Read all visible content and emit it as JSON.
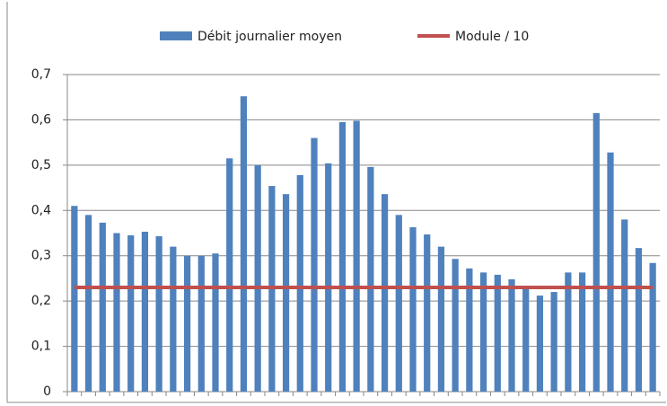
{
  "chart_data": {
    "type": "bar",
    "categories": [
      null,
      null,
      null,
      null,
      null,
      null,
      null,
      null,
      null,
      null,
      null,
      null,
      null,
      null,
      null,
      null,
      null,
      null,
      null,
      null,
      null,
      null,
      null,
      null,
      null,
      null,
      null,
      null,
      null,
      null,
      null,
      null,
      null,
      null,
      null,
      null,
      null,
      null,
      null,
      null,
      null,
      null
    ],
    "series": [
      {
        "name": "Débit journalier moyen",
        "type": "bar",
        "color": "#4f81bd",
        "values": [
          0.41,
          0.39,
          0.373,
          0.35,
          0.345,
          0.353,
          0.343,
          0.32,
          0.3,
          0.3,
          0.305,
          0.515,
          0.652,
          0.5,
          0.454,
          0.436,
          0.478,
          0.56,
          0.504,
          0.595,
          0.598,
          0.496,
          0.436,
          0.39,
          0.363,
          0.347,
          0.32,
          0.293,
          0.272,
          0.263,
          0.258,
          0.248,
          0.23,
          0.212,
          0.22,
          0.263,
          0.263,
          0.615,
          0.528,
          0.38,
          0.317,
          0.284
        ]
      },
      {
        "name": "Module / 10",
        "type": "line",
        "color": "#c0504d",
        "values": [
          0.23,
          0.23,
          0.23,
          0.23,
          0.23,
          0.23,
          0.23,
          0.23,
          0.23,
          0.23,
          0.23,
          0.23,
          0.23,
          0.23,
          0.23,
          0.23,
          0.23,
          0.23,
          0.23,
          0.23,
          0.23,
          0.23,
          0.23,
          0.23,
          0.23,
          0.23,
          0.23,
          0.23,
          0.23,
          0.23,
          0.23,
          0.23,
          0.23,
          0.23,
          0.23,
          0.23,
          0.23,
          0.23,
          0.23,
          0.23,
          0.23,
          0.23
        ]
      }
    ],
    "ylim": [
      0,
      0.7
    ],
    "yticks": [
      0,
      {
        "value": 0.1,
        "label": "0,1"
      },
      {
        "value": 0.2,
        "label": "0,2"
      },
      {
        "value": 0.3,
        "label": "0,3"
      },
      {
        "value": 0.4,
        "label": "0,4"
      },
      {
        "value": 0.5,
        "label": "0,5"
      },
      {
        "value": 0.6,
        "label": "0,6"
      },
      {
        "value": 0.7,
        "label": "0,7"
      }
    ],
    "grid": true,
    "legend": "top"
  }
}
